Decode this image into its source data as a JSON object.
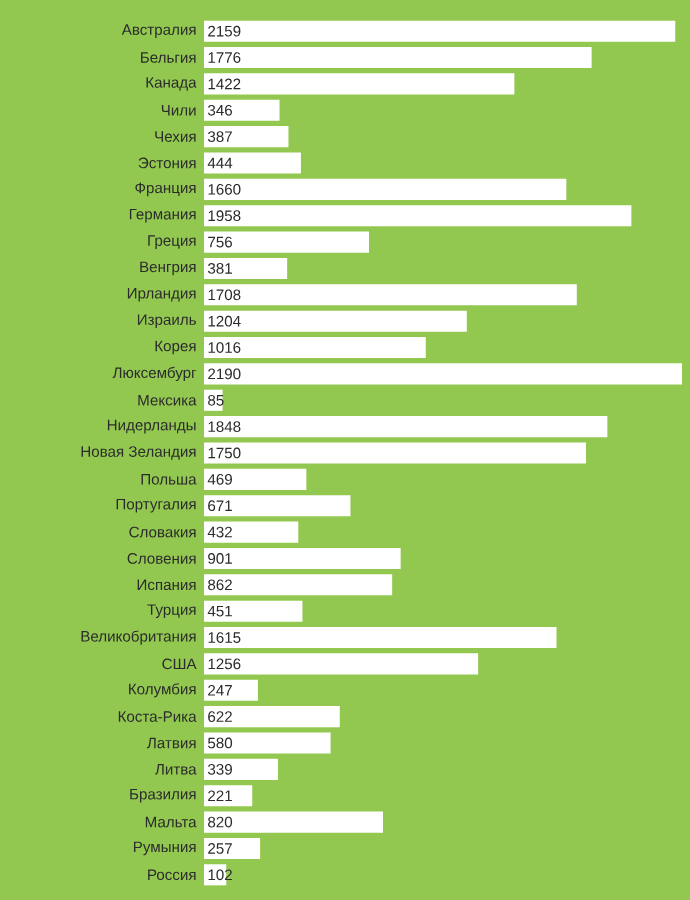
{
  "chart_data": {
    "type": "bar",
    "orientation": "horizontal",
    "data_labels": true,
    "color": "#ffffff",
    "categories": [
      "Австралия",
      "Бельгия",
      "Канада",
      "Чили",
      "Чехия",
      "Эстония",
      "Франция",
      "Германия",
      "Греция",
      "Венгрия",
      "Ирландия",
      "Израиль",
      "Корея",
      "Люксембург",
      "Мексика",
      "Нидерланды",
      "Новая Зеландия",
      "Польша",
      "Португалия",
      "Словакия",
      "Словения",
      "Испания",
      "Турция",
      "Великобритания",
      "США",
      "Колумбия",
      "Коста-Рика",
      "Латвия",
      "Литва",
      "Бразилия",
      "Мальта",
      "Румыния",
      "Россия"
    ],
    "values": [
      2159,
      1776,
      1422,
      346,
      387,
      444,
      1660,
      1958,
      756,
      381,
      1708,
      1204,
      1016,
      2190,
      85,
      1848,
      1750,
      469,
      671,
      432,
      901,
      862,
      451,
      1615,
      1256,
      247,
      622,
      580,
      339,
      221,
      820,
      257,
      102
    ]
  }
}
